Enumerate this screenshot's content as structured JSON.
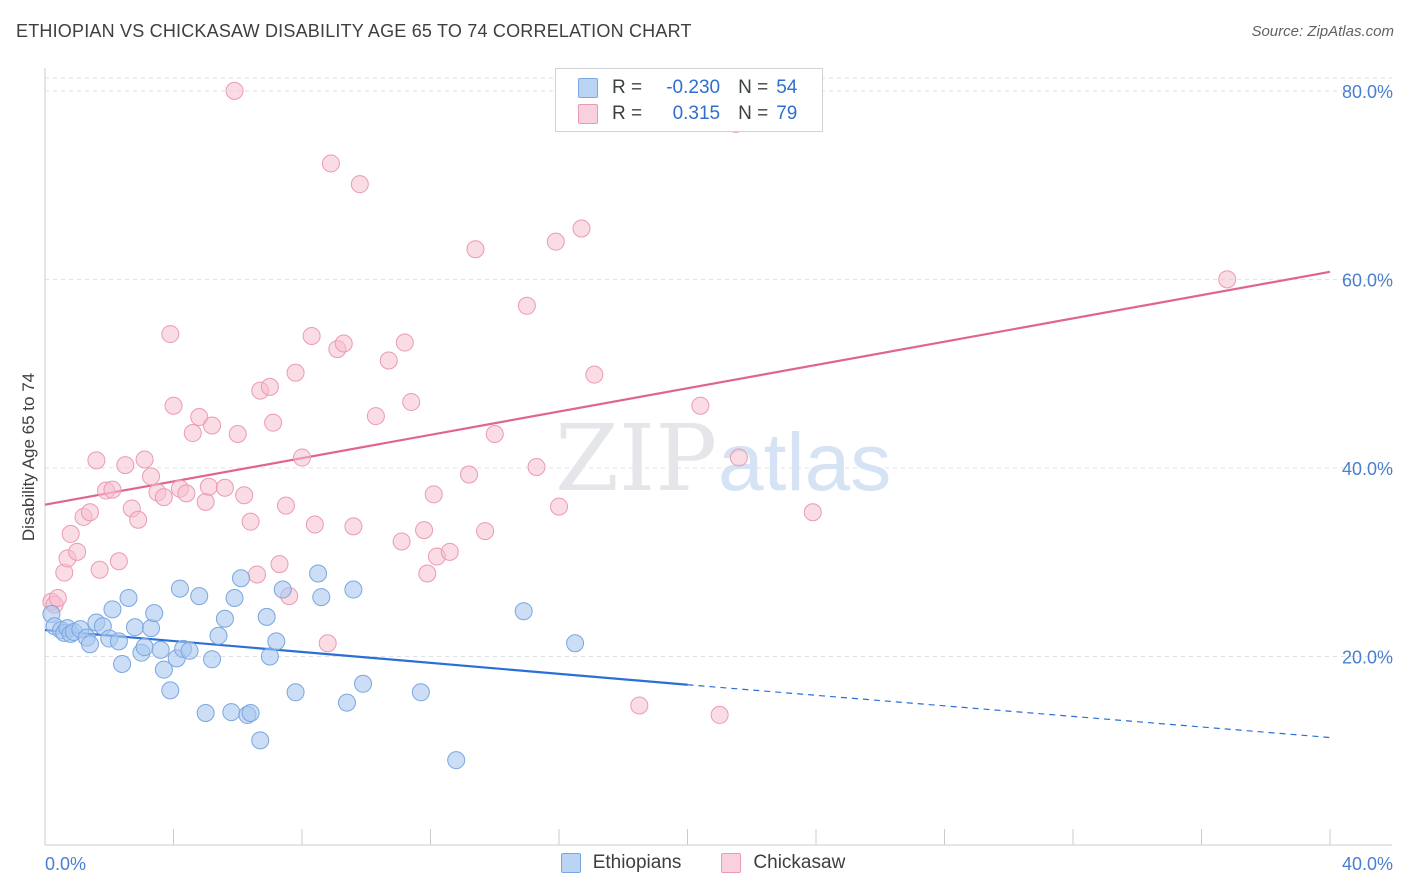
{
  "title": "ETHIOPIAN VS CHICKASAW DISABILITY AGE 65 TO 74 CORRELATION CHART",
  "source": "Source: ZipAtlas.com",
  "watermark": {
    "zip": "ZIP",
    "atlas": "atlas"
  },
  "legend": {
    "rows": [
      {
        "r_label": "R =",
        "r_value": "-0.230",
        "n_label": "N =",
        "n_value": "54"
      },
      {
        "r_label": "R =",
        "r_value": "0.315",
        "n_label": "N =",
        "n_value": "79"
      }
    ]
  },
  "colors": {
    "ethiopians_fill": "#a9c8f0",
    "ethiopians_stroke": "#7aa6e0",
    "ethiopians_line": "#2a6fd6",
    "chickasaw_fill": "#f6bfd0",
    "chickasaw_stroke": "#ec9ab4",
    "chickasaw_line": "#e0658e",
    "grid": "#dde1e6",
    "axis_text": "#4a7fd0"
  },
  "chart_data": {
    "type": "scatter",
    "title": "ETHIOPIAN VS CHICKASAW DISABILITY AGE 65 TO 74 CORRELATION CHART",
    "xlabel": "",
    "ylabel": "Disability Age 65 to 74",
    "xlim": [
      0,
      40
    ],
    "ylim": [
      0,
      82
    ],
    "x_ticks": [
      "0.0%",
      "40.0%"
    ],
    "y_ticks": [
      {
        "value": 20,
        "label": "20.0%"
      },
      {
        "value": 40,
        "label": "40.0%"
      },
      {
        "value": 60,
        "label": "60.0%"
      },
      {
        "value": 80,
        "label": "80.0%"
      }
    ],
    "grid": true,
    "legend_position": "bottom-center",
    "series": [
      {
        "name": "Ethiopians",
        "trend": {
          "x0": 0,
          "y0": 22.8,
          "x1": 20,
          "y1": 17.0,
          "dashed_to_x": 40,
          "dashed_to_y": 11.4
        },
        "points": [
          [
            0.2,
            24.5
          ],
          [
            0.3,
            23.2
          ],
          [
            0.5,
            22.8
          ],
          [
            0.6,
            22.5
          ],
          [
            0.7,
            23.0
          ],
          [
            0.8,
            22.4
          ],
          [
            0.9,
            22.6
          ],
          [
            1.1,
            22.9
          ],
          [
            1.3,
            22.0
          ],
          [
            1.4,
            21.3
          ],
          [
            1.6,
            23.6
          ],
          [
            1.8,
            23.2
          ],
          [
            2.0,
            21.9
          ],
          [
            2.1,
            25.0
          ],
          [
            2.3,
            21.6
          ],
          [
            2.4,
            19.2
          ],
          [
            2.6,
            26.2
          ],
          [
            2.8,
            23.1
          ],
          [
            3.0,
            20.4
          ],
          [
            3.1,
            21.0
          ],
          [
            3.3,
            23.0
          ],
          [
            3.4,
            24.6
          ],
          [
            3.6,
            20.7
          ],
          [
            3.7,
            18.6
          ],
          [
            3.9,
            16.4
          ],
          [
            4.1,
            19.8
          ],
          [
            4.3,
            20.8
          ],
          [
            4.5,
            20.6
          ],
          [
            4.2,
            27.2
          ],
          [
            4.8,
            26.4
          ],
          [
            5.0,
            14.0
          ],
          [
            5.2,
            19.7
          ],
          [
            5.4,
            22.2
          ],
          [
            5.6,
            24.0
          ],
          [
            5.8,
            14.1
          ],
          [
            5.9,
            26.2
          ],
          [
            6.1,
            28.3
          ],
          [
            6.3,
            13.8
          ],
          [
            6.4,
            14.0
          ],
          [
            6.7,
            11.1
          ],
          [
            6.9,
            24.2
          ],
          [
            7.0,
            20.0
          ],
          [
            7.2,
            21.6
          ],
          [
            7.4,
            27.1
          ],
          [
            7.8,
            16.2
          ],
          [
            8.5,
            28.8
          ],
          [
            8.6,
            26.3
          ],
          [
            9.4,
            15.1
          ],
          [
            9.6,
            27.1
          ],
          [
            9.9,
            17.1
          ],
          [
            11.7,
            16.2
          ],
          [
            12.8,
            9.0
          ],
          [
            14.9,
            24.8
          ],
          [
            16.5,
            21.4
          ]
        ]
      },
      {
        "name": "Chickasaw",
        "trend": {
          "x0": 0,
          "y0": 36.1,
          "x1": 40,
          "y1": 60.8
        },
        "points": [
          [
            0.2,
            25.8
          ],
          [
            0.3,
            25.5
          ],
          [
            0.4,
            26.2
          ],
          [
            0.6,
            28.9
          ],
          [
            0.7,
            30.4
          ],
          [
            0.8,
            33.0
          ],
          [
            1.0,
            31.1
          ],
          [
            1.2,
            34.8
          ],
          [
            1.4,
            35.3
          ],
          [
            1.6,
            40.8
          ],
          [
            1.7,
            29.2
          ],
          [
            1.9,
            37.6
          ],
          [
            2.1,
            37.7
          ],
          [
            2.3,
            30.1
          ],
          [
            2.5,
            40.3
          ],
          [
            2.7,
            35.7
          ],
          [
            2.9,
            34.5
          ],
          [
            3.1,
            40.9
          ],
          [
            3.3,
            39.1
          ],
          [
            3.5,
            37.4
          ],
          [
            3.7,
            36.9
          ],
          [
            3.9,
            54.2
          ],
          [
            4.0,
            46.6
          ],
          [
            4.2,
            37.8
          ],
          [
            4.4,
            37.3
          ],
          [
            4.6,
            43.7
          ],
          [
            4.8,
            45.4
          ],
          [
            5.0,
            36.4
          ],
          [
            5.1,
            38.0
          ],
          [
            5.2,
            44.5
          ],
          [
            5.6,
            37.9
          ],
          [
            6.0,
            43.6
          ],
          [
            6.2,
            37.1
          ],
          [
            6.4,
            34.3
          ],
          [
            6.6,
            28.7
          ],
          [
            6.7,
            48.2
          ],
          [
            7.0,
            48.6
          ],
          [
            7.1,
            44.8
          ],
          [
            7.3,
            29.8
          ],
          [
            7.5,
            36.0
          ],
          [
            7.6,
            26.4
          ],
          [
            7.8,
            50.1
          ],
          [
            8.0,
            41.1
          ],
          [
            8.3,
            54.0
          ],
          [
            8.4,
            34.0
          ],
          [
            8.8,
            21.4
          ],
          [
            8.9,
            72.3
          ],
          [
            9.1,
            52.6
          ],
          [
            9.3,
            53.2
          ],
          [
            9.6,
            33.8
          ],
          [
            9.8,
            70.1
          ],
          [
            10.3,
            45.5
          ],
          [
            10.7,
            51.4
          ],
          [
            11.1,
            32.2
          ],
          [
            11.2,
            53.3
          ],
          [
            11.4,
            47.0
          ],
          [
            11.8,
            33.4
          ],
          [
            11.9,
            28.8
          ],
          [
            12.1,
            37.2
          ],
          [
            12.2,
            30.6
          ],
          [
            12.6,
            31.1
          ],
          [
            13.2,
            39.3
          ],
          [
            13.4,
            63.2
          ],
          [
            13.7,
            33.3
          ],
          [
            14.0,
            43.6
          ],
          [
            15.0,
            57.2
          ],
          [
            15.3,
            40.1
          ],
          [
            15.9,
            64.0
          ],
          [
            16.0,
            35.9
          ],
          [
            16.7,
            65.4
          ],
          [
            17.1,
            49.9
          ],
          [
            18.5,
            14.8
          ],
          [
            20.4,
            46.6
          ],
          [
            21.0,
            13.8
          ],
          [
            21.6,
            41.1
          ],
          [
            23.9,
            35.3
          ],
          [
            5.9,
            80.0
          ],
          [
            21.5,
            76.5
          ],
          [
            36.8,
            60.0
          ]
        ]
      }
    ]
  }
}
